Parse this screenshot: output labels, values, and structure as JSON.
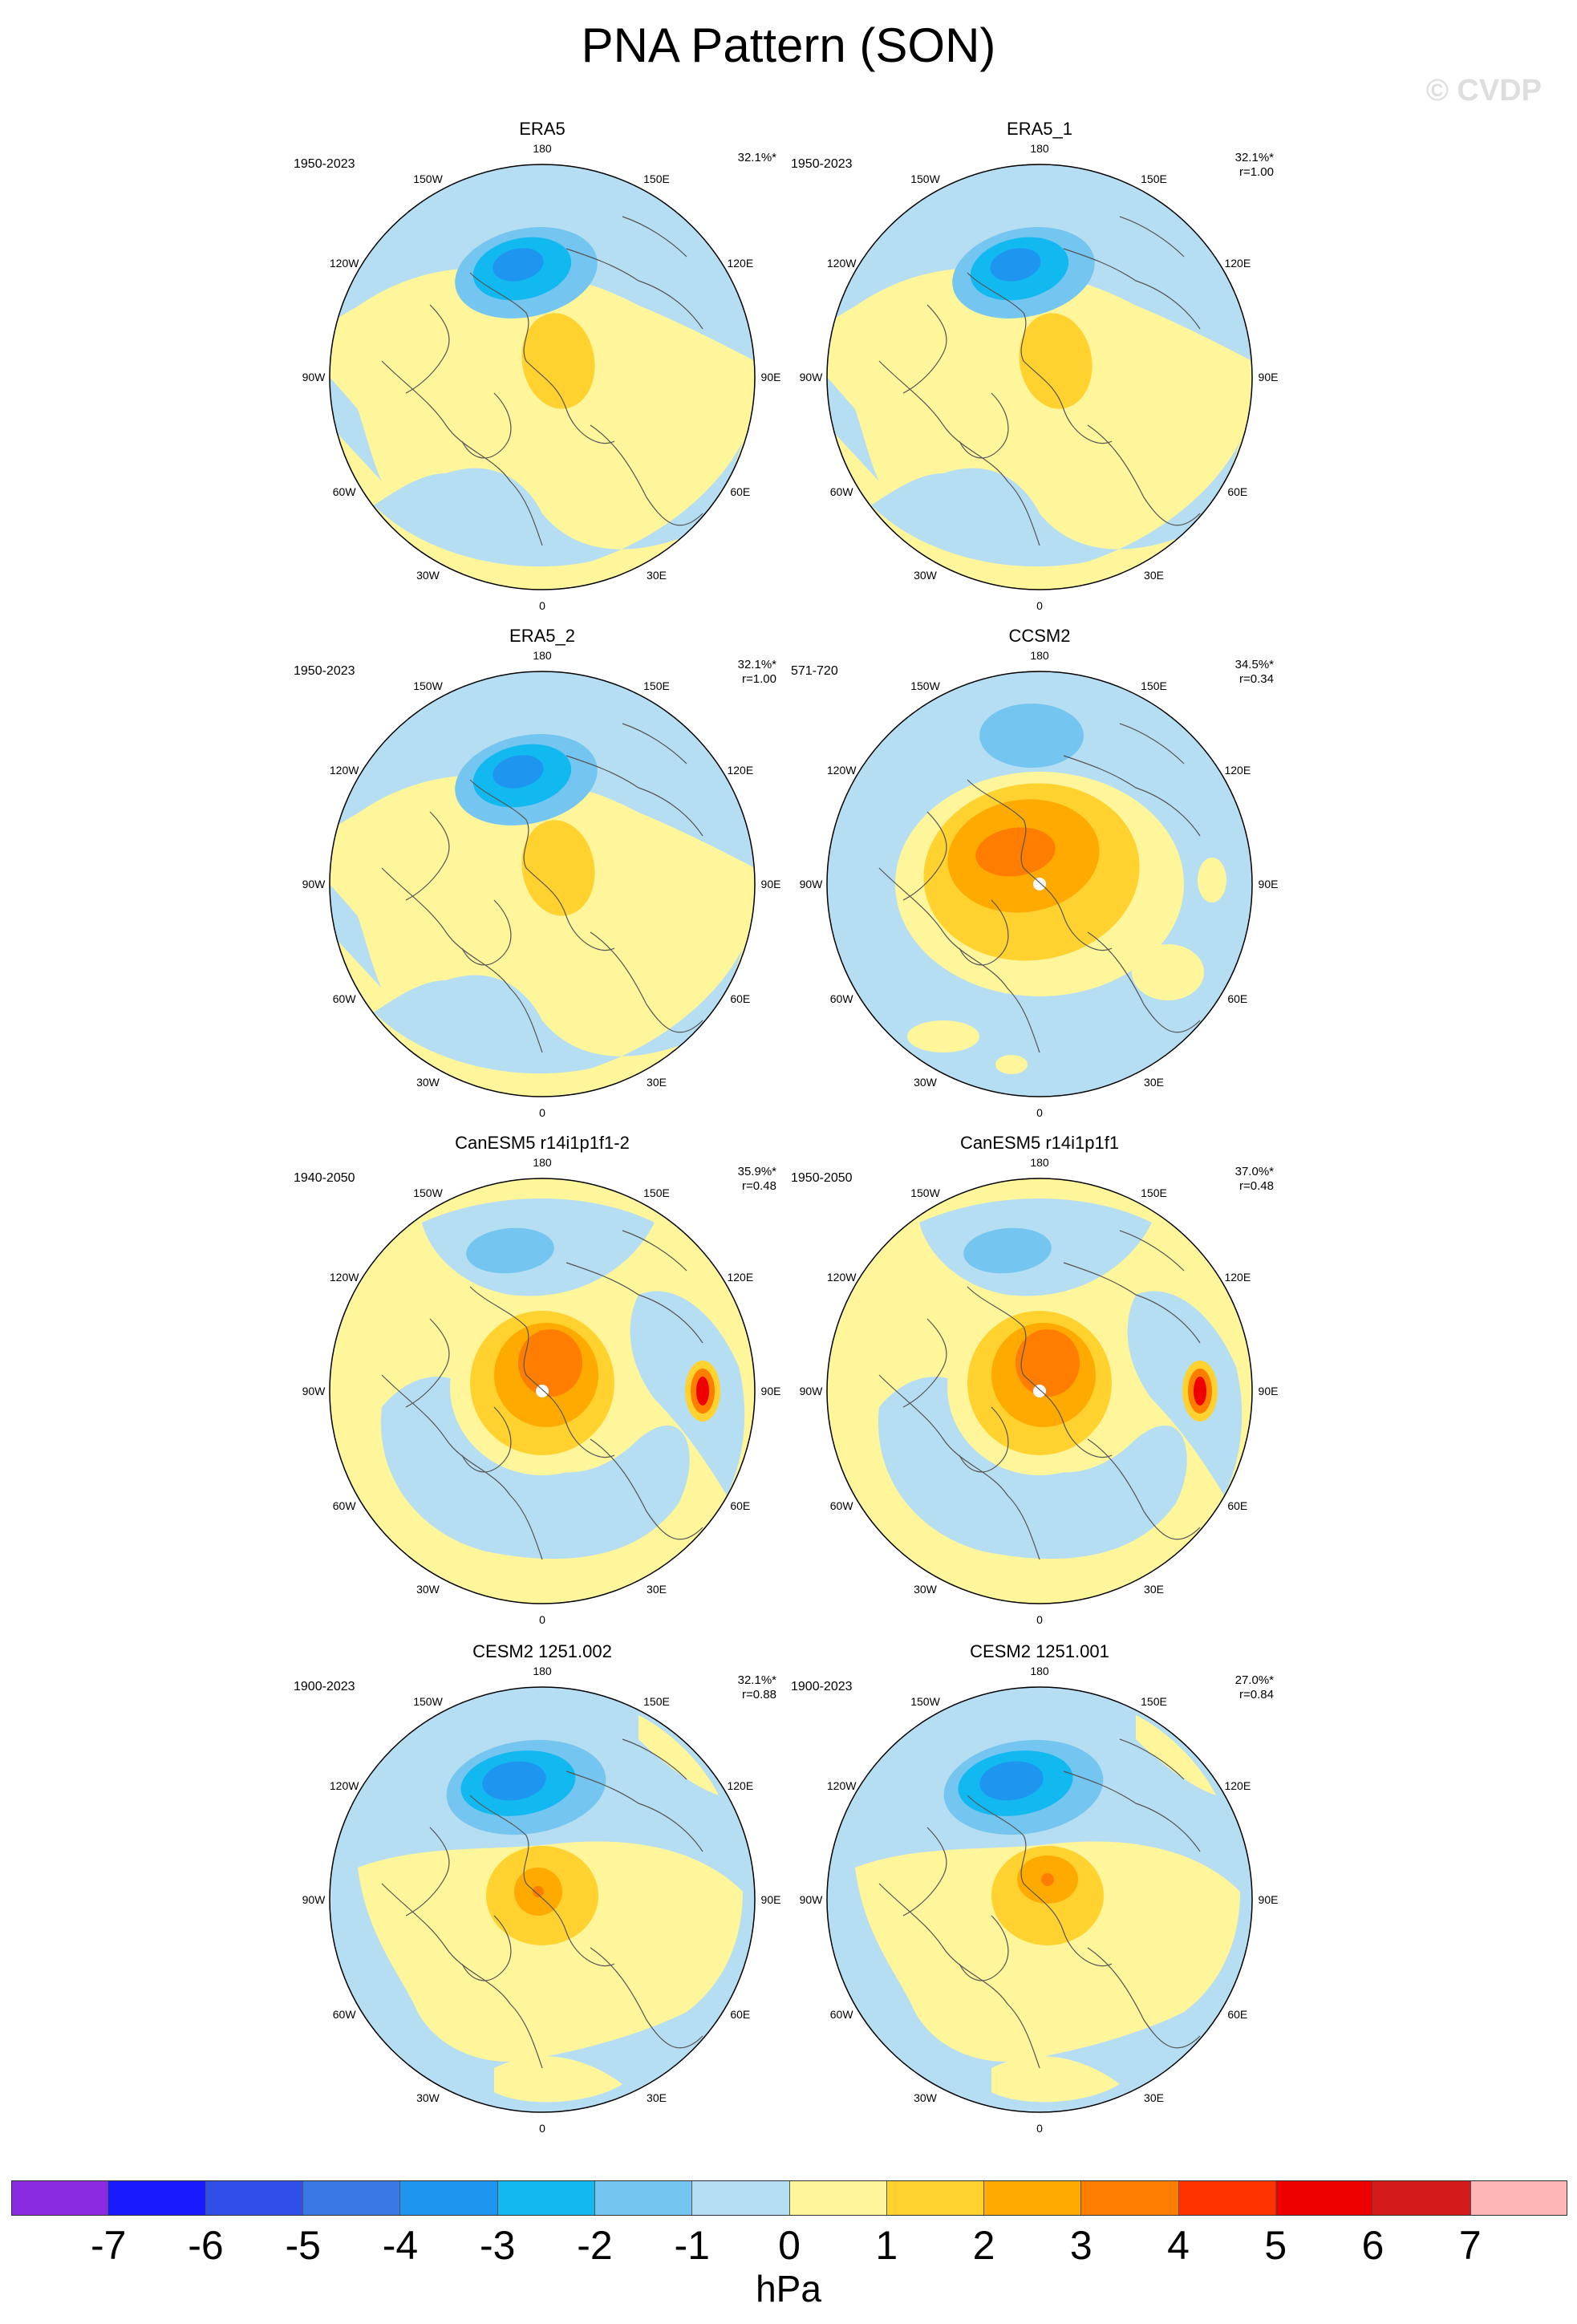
{
  "figure": {
    "title": "PNA Pattern (SON)",
    "watermark": "© CVDP",
    "units": "hPa"
  },
  "colorbar": {
    "labels": [
      "-7",
      "-6",
      "-5",
      "-4",
      "-3",
      "-2",
      "-1",
      "0",
      "1",
      "2",
      "3",
      "4",
      "5",
      "6",
      "7"
    ],
    "colors": [
      "#8a2be2",
      "#1a1aff",
      "#2f4fe8",
      "#3a78e6",
      "#1e96f0",
      "#12b8f0",
      "#74c6f0",
      "#b6def2",
      "#fff59a",
      "#ffd230",
      "#ffaa00",
      "#ff7d00",
      "#ff3300",
      "#ee0000",
      "#d41a1a",
      "#ffb6b6"
    ]
  },
  "longitude_labels": [
    "180",
    "150E",
    "120E",
    "90E",
    "60E",
    "30E",
    "0",
    "30W",
    "60W",
    "90W",
    "120W",
    "150W"
  ],
  "panels": [
    {
      "title": "ERA5",
      "years": "1950-2023",
      "pct": "32.1%*",
      "r": "",
      "style": "era"
    },
    {
      "title": "ERA5_1",
      "years": "1950-2023",
      "pct": "32.1%*",
      "r": "r=1.00",
      "style": "era"
    },
    {
      "title": "ERA5_2",
      "years": "1950-2023",
      "pct": "32.1%*",
      "r": "r=1.00",
      "style": "era"
    },
    {
      "title": "CCSM2",
      "years": "571-720",
      "pct": "34.5%*",
      "r": "r=0.34",
      "style": "ccsm"
    },
    {
      "title": "CanESM5 r14i1p1f1-2",
      "years": "1940-2050",
      "pct": "35.9%*",
      "r": "r=0.48",
      "style": "can"
    },
    {
      "title": "CanESM5 r14i1p1f1",
      "years": "1950-2050",
      "pct": "37.0%*",
      "r": "r=0.48",
      "style": "can"
    },
    {
      "title": "CESM2 1251.002",
      "years": "1900-2023",
      "pct": "32.1%*",
      "r": "r=0.88",
      "style": "cesm"
    },
    {
      "title": "CESM2 1251.001",
      "years": "1900-2023",
      "pct": "27.0%*",
      "r": "r=0.84",
      "style": "cesm2"
    }
  ]
}
